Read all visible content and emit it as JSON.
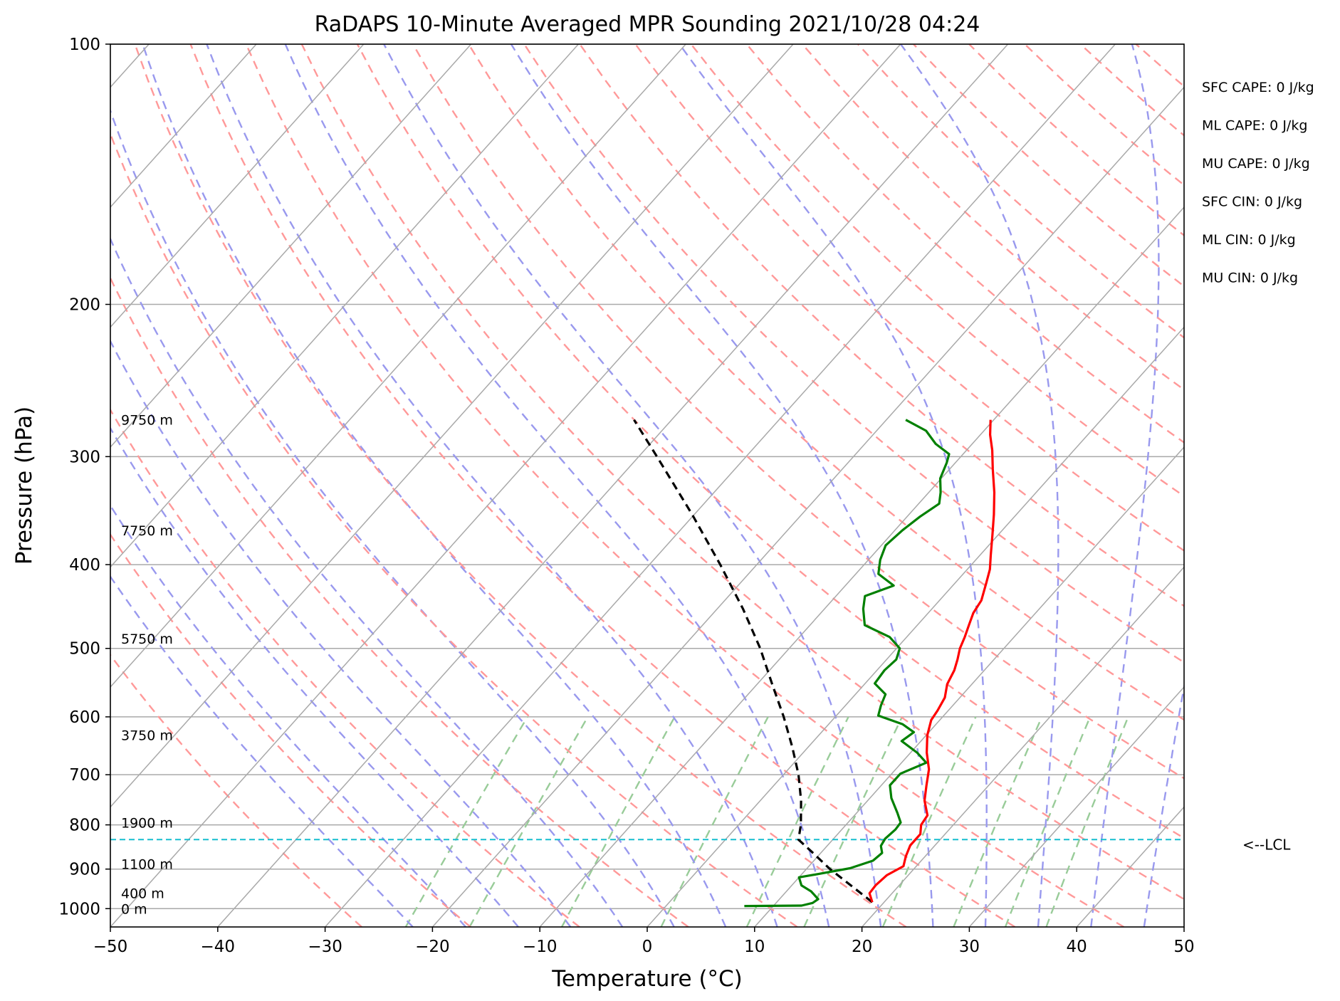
{
  "chart_data": {
    "type": "skew-t",
    "title": "RaDAPS 10-Minute Averaged MPR Sounding 2021/10/28 04:24",
    "xlabel": "Temperature (°C)",
    "ylabel": "Pressure (hPa)",
    "xlim": [
      -50,
      50
    ],
    "ylim_hpa": [
      1050,
      100
    ],
    "log_pressure_axis": true,
    "grid": true,
    "x_ticks": [
      -50,
      -40,
      -30,
      -20,
      -10,
      0,
      10,
      20,
      30,
      40,
      50
    ],
    "x_tick_labels": [
      "−50",
      "−40",
      "−30",
      "−20",
      "−10",
      "0",
      "10",
      "20",
      "30",
      "40",
      "50"
    ],
    "y_ticks": [
      100,
      200,
      300,
      400,
      500,
      600,
      700,
      800,
      900,
      1000
    ],
    "y_tick_labels": [
      "100",
      "200",
      "300",
      "400",
      "500",
      "600",
      "700",
      "800",
      "900",
      "1000"
    ],
    "height_labels": [
      {
        "p": 272,
        "text": "9750 m"
      },
      {
        "p": 365,
        "text": "7750 m"
      },
      {
        "p": 487,
        "text": "5750 m"
      },
      {
        "p": 630,
        "text": "3750 m"
      },
      {
        "p": 795,
        "text": "1900 m"
      },
      {
        "p": 888,
        "text": "1100 m"
      },
      {
        "p": 960,
        "text": "400 m"
      },
      {
        "p": 1000,
        "text": "0 m"
      }
    ],
    "temperature": {
      "color": "#ff0000",
      "points": [
        [
          983,
          18.9
        ],
        [
          960,
          17.9
        ],
        [
          940,
          17.8
        ],
        [
          915,
          18.0
        ],
        [
          893,
          18.8
        ],
        [
          870,
          18.2
        ],
        [
          845,
          17.7
        ],
        [
          820,
          17.7
        ],
        [
          800,
          17.0
        ],
        [
          780,
          16.8
        ],
        [
          750,
          15.3
        ],
        [
          720,
          14.2
        ],
        [
          690,
          13.1
        ],
        [
          660,
          11.5
        ],
        [
          630,
          10.1
        ],
        [
          605,
          9.2
        ],
        [
          590,
          9.0
        ],
        [
          570,
          8.6
        ],
        [
          550,
          7.7
        ],
        [
          530,
          7.2
        ],
        [
          515,
          6.6
        ],
        [
          500,
          5.9
        ],
        [
          485,
          5.4
        ],
        [
          470,
          4.8
        ],
        [
          455,
          4.2
        ],
        [
          440,
          3.9
        ],
        [
          420,
          2.9
        ],
        [
          405,
          2.1
        ],
        [
          390,
          1.0
        ],
        [
          370,
          -0.5
        ],
        [
          350,
          -2.1
        ],
        [
          330,
          -3.9
        ],
        [
          310,
          -6.0
        ],
        [
          295,
          -7.6
        ],
        [
          283,
          -9.1
        ],
        [
          272,
          -10.3
        ]
      ]
    },
    "dewpoint": {
      "color": "#008000",
      "points": [
        [
          993,
          7.3
        ],
        [
          992,
          12.6
        ],
        [
          985,
          13.4
        ],
        [
          975,
          13.6
        ],
        [
          955,
          12.3
        ],
        [
          940,
          10.9
        ],
        [
          920,
          10.0
        ],
        [
          912,
          11.5
        ],
        [
          898,
          14.0
        ],
        [
          880,
          15.5
        ],
        [
          862,
          15.7
        ],
        [
          846,
          15.0
        ],
        [
          830,
          14.8
        ],
        [
          810,
          15.0
        ],
        [
          795,
          14.9
        ],
        [
          775,
          13.8
        ],
        [
          745,
          12.0
        ],
        [
          720,
          10.8
        ],
        [
          698,
          10.8
        ],
        [
          678,
          12.3
        ],
        [
          660,
          10.6
        ],
        [
          640,
          8.2
        ],
        [
          625,
          8.6
        ],
        [
          612,
          6.9
        ],
        [
          598,
          3.9
        ],
        [
          582,
          3.3
        ],
        [
          565,
          2.8
        ],
        [
          549,
          0.9
        ],
        [
          530,
          0.7
        ],
        [
          515,
          0.9
        ],
        [
          500,
          0.3
        ],
        [
          485,
          -1.6
        ],
        [
          470,
          -4.9
        ],
        [
          450,
          -6.4
        ],
        [
          435,
          -7.3
        ],
        [
          423,
          -5.5
        ],
        [
          410,
          -7.9
        ],
        [
          395,
          -8.9
        ],
        [
          380,
          -9.6
        ],
        [
          365,
          -9.3
        ],
        [
          352,
          -8.8
        ],
        [
          340,
          -8.1
        ],
        [
          330,
          -8.9
        ],
        [
          318,
          -10.1
        ],
        [
          305,
          -10.8
        ],
        [
          298,
          -11.3
        ],
        [
          290,
          -13.4
        ],
        [
          280,
          -15.4
        ],
        [
          272,
          -18.2
        ]
      ]
    },
    "parcel": {
      "color": "#000000",
      "style": "dashed",
      "points": [
        [
          983,
          18.9
        ],
        [
          940,
          15.5
        ],
        [
          900,
          12.2
        ],
        [
          860,
          9.1
        ],
        [
          832,
          6.8
        ],
        [
          800,
          5.8
        ],
        [
          750,
          3.8
        ],
        [
          700,
          1.4
        ],
        [
          650,
          -1.5
        ],
        [
          600,
          -4.8
        ],
        [
          550,
          -8.6
        ],
        [
          500,
          -12.7
        ],
        [
          450,
          -17.6
        ],
        [
          400,
          -23.4
        ],
        [
          350,
          -30.2
        ],
        [
          300,
          -38.3
        ],
        [
          272,
          -43.5
        ]
      ]
    },
    "lcl": {
      "p": 832,
      "label": "<--LCL",
      "color": "#17becf"
    },
    "reference_lines": {
      "isotherm_color": "#a9a9a9",
      "dry_adiabat_color": "#ff9999",
      "moist_adiabat_color": "#9999ee",
      "mixing_ratio_color": "#99cc99"
    },
    "indices": [
      {
        "label": "SFC CAPE: 0 J/kg"
      },
      {
        "label": "ML CAPE: 0 J/kg"
      },
      {
        "label": "MU CAPE: 0 J/kg"
      },
      {
        "label": "SFC CIN: 0 J/kg"
      },
      {
        "label": "ML CIN: 0 J/kg"
      },
      {
        "label": "MU CIN: 0 J/kg"
      }
    ]
  }
}
